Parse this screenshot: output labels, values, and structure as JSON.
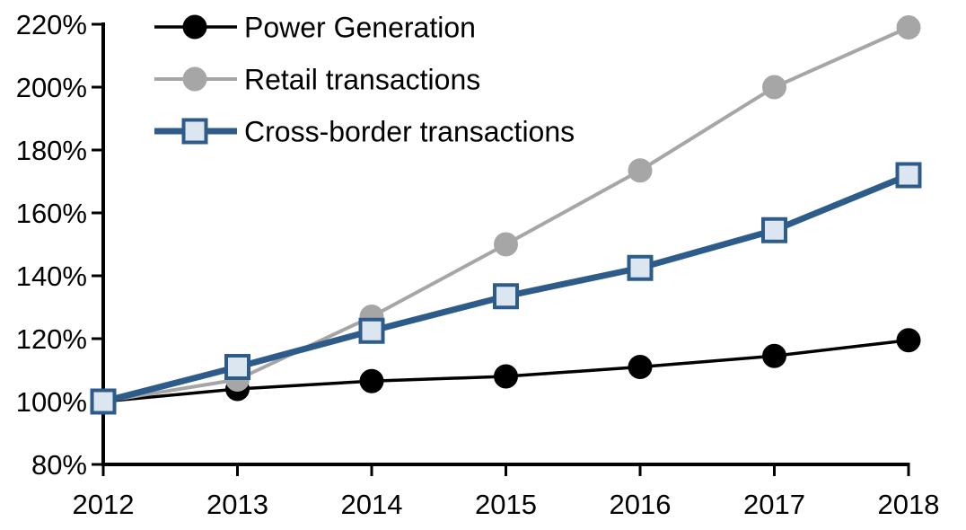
{
  "chart_data": {
    "type": "line",
    "title": "",
    "xlabel": "",
    "ylabel": "",
    "categories": [
      "2012",
      "2013",
      "2014",
      "2015",
      "2016",
      "2017",
      "2018"
    ],
    "ylim": [
      80,
      220
    ],
    "y_tick_step": 20,
    "y_ticks": [
      80,
      100,
      120,
      140,
      160,
      180,
      200,
      220
    ],
    "y_tick_labels": [
      "80%",
      "100%",
      "120%",
      "140%",
      "160%",
      "180%",
      "200%",
      "220%"
    ],
    "grid": false,
    "legend_position": "top-left",
    "series": [
      {
        "name": "Power Generation",
        "marker": "circle",
        "color": "#000000",
        "marker_fill": "#000000",
        "line_width": 3.5,
        "values": [
          100,
          104,
          106.5,
          108,
          111,
          114.5,
          119.5
        ]
      },
      {
        "name": "Retail transactions",
        "marker": "circle",
        "color": "#a6a6a6",
        "marker_fill": "#a6a6a6",
        "line_width": 4,
        "values": [
          100,
          107,
          127,
          150,
          173.5,
          200,
          219
        ]
      },
      {
        "name": "Cross-border transactions",
        "marker": "square",
        "color": "#2e5c8a",
        "marker_fill": "#dce6f1",
        "line_width": 7,
        "values": [
          100,
          111,
          122.5,
          133.5,
          142.5,
          154.5,
          172
        ]
      }
    ]
  },
  "colors": {
    "axis": "#000000",
    "text": "#000000",
    "background": "#ffffff"
  }
}
